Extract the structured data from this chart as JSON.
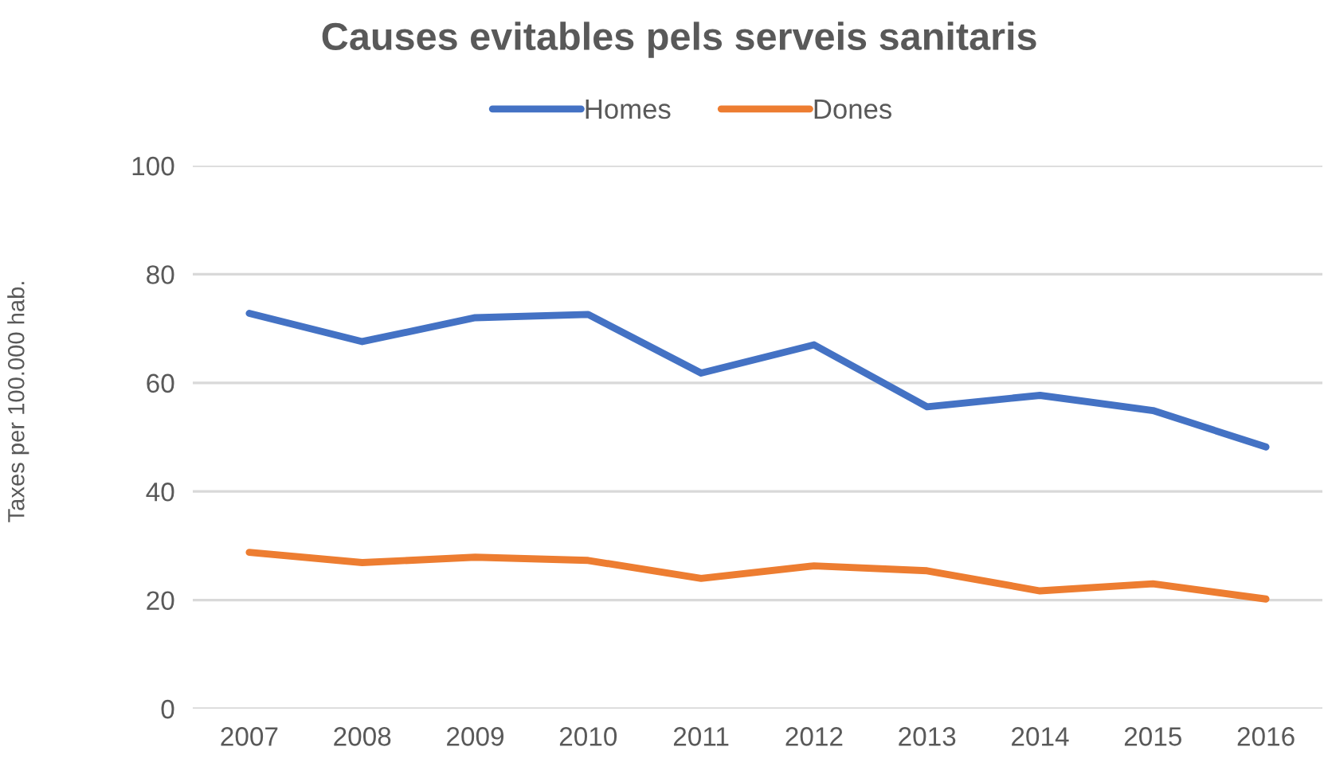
{
  "chart_data": {
    "type": "line",
    "title": "Causes evitables pels serveis sanitaris",
    "ylabel": "Taxes per 100.000 hab.",
    "categories": [
      "2007",
      "2008",
      "2009",
      "2010",
      "2011",
      "2012",
      "2013",
      "2014",
      "2015",
      "2016"
    ],
    "series": [
      {
        "name": "Homes",
        "color": "#4472c4",
        "values": [
          72.8,
          67.6,
          72.0,
          72.6,
          61.8,
          67.0,
          55.6,
          57.7,
          54.9,
          48.2
        ]
      },
      {
        "name": "Dones",
        "color": "#ed7d31",
        "values": [
          28.8,
          26.9,
          27.9,
          27.3,
          24.0,
          26.3,
          25.4,
          21.7,
          23.0,
          20.2
        ]
      }
    ],
    "ylim": [
      0,
      100
    ],
    "yticks": [
      0,
      20,
      40,
      60,
      80,
      100
    ],
    "grid": "y",
    "legend": "top"
  }
}
